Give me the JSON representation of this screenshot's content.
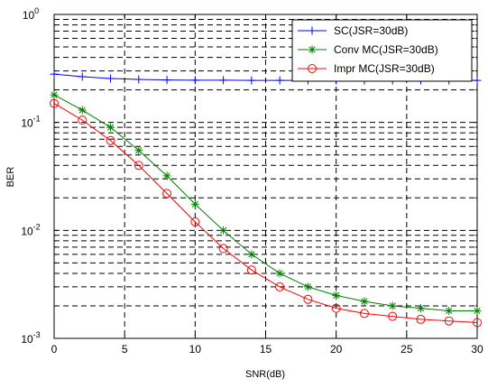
{
  "chart_data": {
    "type": "line",
    "xlabel": "SNR(dB)",
    "ylabel": "BER",
    "xlim": [
      0,
      30
    ],
    "ylim": [
      0.001,
      1
    ],
    "yscale": "log",
    "grid": true,
    "legend_position": "top-right",
    "x_ticks": [
      0,
      5,
      10,
      15,
      20,
      25,
      30
    ],
    "x_tick_labels": [
      "0",
      "5",
      "10",
      "15",
      "20",
      "25",
      "30"
    ],
    "y_ticks": [
      0.001,
      0.01,
      0.1,
      1
    ],
    "y_tick_labels": [
      {
        "base": "10",
        "exp": "-3"
      },
      {
        "base": "10",
        "exp": "-2"
      },
      {
        "base": "10",
        "exp": "-1"
      },
      {
        "base": "10",
        "exp": "0"
      }
    ],
    "x": [
      0,
      2,
      4,
      6,
      8,
      10,
      12,
      14,
      16,
      18,
      20,
      22,
      24,
      26,
      28,
      30
    ],
    "series": [
      {
        "name": "SC(JSR=30dB)",
        "color": "#0000ff",
        "marker": "plus",
        "values": [
          0.28,
          0.265,
          0.255,
          0.25,
          0.247,
          0.246,
          0.246,
          0.245,
          0.245,
          0.245,
          0.245,
          0.245,
          0.245,
          0.245,
          0.245,
          0.245
        ]
      },
      {
        "name": "Conv MC(JSR=30dB)",
        "color": "#008000",
        "marker": "star",
        "values": [
          0.18,
          0.13,
          0.09,
          0.055,
          0.032,
          0.0175,
          0.01,
          0.006,
          0.004,
          0.003,
          0.0025,
          0.0022,
          0.002,
          0.0019,
          0.0018,
          0.0018
        ]
      },
      {
        "name": "Impr MC(JSR=30dB)",
        "color": "#ff0000",
        "marker": "circle",
        "values": [
          0.15,
          0.105,
          0.068,
          0.04,
          0.022,
          0.012,
          0.0068,
          0.0043,
          0.003,
          0.0023,
          0.0019,
          0.0017,
          0.0016,
          0.0015,
          0.00145,
          0.0014
        ]
      }
    ]
  }
}
